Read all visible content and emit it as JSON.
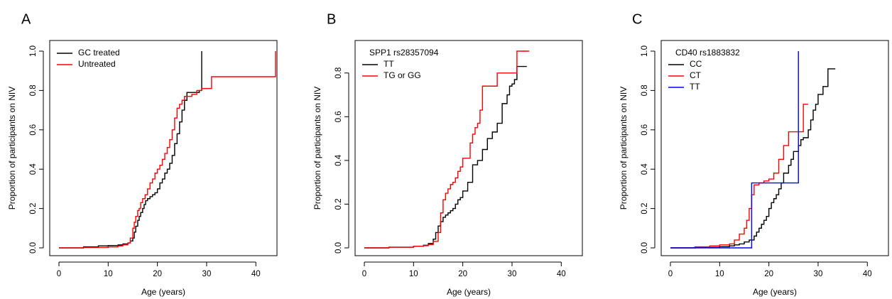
{
  "chart_data": [
    {
      "type": "line",
      "panel": "A",
      "xlabel": "Age (years)",
      "ylabel": "Proportion of participants on NIV",
      "xlim": [
        0,
        44
      ],
      "ylim": [
        0,
        1.0
      ],
      "xticks": [
        "0",
        "10",
        "20",
        "30",
        "40"
      ],
      "yticks": [
        "0.0",
        "0.2",
        "0.4",
        "0.6",
        "0.8",
        "1.0"
      ],
      "legend_position": "top-left",
      "legend_title": "",
      "series": [
        {
          "name": "GC treated",
          "color": "#000000",
          "x": [
            0,
            5,
            8,
            10,
            12,
            13,
            14,
            14.5,
            15,
            15.3,
            15.6,
            16,
            16.3,
            16.6,
            17,
            17.3,
            17.6,
            18,
            18.5,
            19,
            19.5,
            20,
            20.5,
            21,
            21.5,
            22,
            22.5,
            23,
            23.5,
            24,
            24.5,
            25,
            25.5,
            26,
            27,
            28,
            28.5,
            28.8,
            29
          ],
          "y": [
            0,
            0.005,
            0.01,
            0.012,
            0.015,
            0.02,
            0.025,
            0.035,
            0.05,
            0.08,
            0.11,
            0.14,
            0.16,
            0.18,
            0.2,
            0.22,
            0.24,
            0.25,
            0.26,
            0.27,
            0.28,
            0.3,
            0.33,
            0.35,
            0.38,
            0.4,
            0.43,
            0.47,
            0.53,
            0.58,
            0.64,
            0.7,
            0.75,
            0.79,
            0.79,
            0.79,
            0.8,
            0.8,
            1.0
          ]
        },
        {
          "name": "Untreated",
          "color": "#ff0000",
          "x": [
            0,
            5,
            10,
            12,
            13,
            14,
            14.5,
            15,
            15.3,
            15.6,
            16,
            16.3,
            16.6,
            17,
            17.5,
            18,
            18.5,
            19,
            19.5,
            20,
            20.5,
            21,
            21.5,
            22,
            22.5,
            23,
            23.5,
            24,
            24.5,
            25,
            25.5,
            26,
            27,
            28,
            29,
            30,
            31,
            33,
            35,
            38,
            40,
            42,
            44
          ],
          "y": [
            0,
            0.002,
            0.005,
            0.01,
            0.015,
            0.025,
            0.05,
            0.1,
            0.13,
            0.16,
            0.19,
            0.2,
            0.23,
            0.25,
            0.27,
            0.3,
            0.33,
            0.35,
            0.38,
            0.4,
            0.42,
            0.45,
            0.48,
            0.51,
            0.55,
            0.6,
            0.66,
            0.71,
            0.73,
            0.75,
            0.77,
            0.77,
            0.78,
            0.8,
            0.81,
            0.81,
            0.87,
            0.87,
            0.87,
            0.87,
            0.87,
            0.87,
            1.0
          ]
        }
      ]
    },
    {
      "type": "line",
      "panel": "B",
      "xlabel": "Age (years)",
      "ylabel": "Proportion of participants on NIV",
      "xlim": [
        0,
        44
      ],
      "ylim": [
        0,
        0.9
      ],
      "xticks": [
        "0",
        "10",
        "20",
        "30",
        "40"
      ],
      "yticks": [
        "0.0",
        "0.2",
        "0.4",
        "0.6",
        "0.8"
      ],
      "legend_position": "top-left",
      "legend_title": "SPP1 rs28357094",
      "series": [
        {
          "name": "TT",
          "color": "#000000",
          "x": [
            0,
            5,
            10,
            12,
            13,
            14,
            14.5,
            15,
            15.5,
            16,
            16.5,
            17,
            17.5,
            18,
            18.5,
            19,
            19.5,
            20,
            21,
            22,
            23,
            24,
            25,
            26,
            27,
            28,
            29,
            29.5,
            30,
            30.5,
            31,
            31.5,
            33
          ],
          "y": [
            0,
            0.003,
            0.007,
            0.012,
            0.02,
            0.04,
            0.07,
            0.1,
            0.12,
            0.14,
            0.15,
            0.16,
            0.17,
            0.18,
            0.2,
            0.22,
            0.23,
            0.26,
            0.3,
            0.38,
            0.4,
            0.45,
            0.5,
            0.53,
            0.57,
            0.66,
            0.7,
            0.74,
            0.75,
            0.77,
            0.83,
            0.83,
            0.83
          ]
        },
        {
          "name": "TG or GG",
          "color": "#ff0000",
          "x": [
            0,
            5,
            10,
            12,
            13,
            14,
            15,
            15.5,
            16,
            16.5,
            17,
            17.5,
            18,
            18.5,
            19,
            19.5,
            20,
            21,
            21.5,
            22,
            22.5,
            23,
            23.5,
            24,
            25,
            26,
            27,
            28,
            29,
            30,
            31,
            32,
            33.5
          ],
          "y": [
            0,
            0.003,
            0.007,
            0.01,
            0.015,
            0.03,
            0.07,
            0.16,
            0.22,
            0.25,
            0.27,
            0.29,
            0.3,
            0.32,
            0.35,
            0.37,
            0.41,
            0.41,
            0.48,
            0.52,
            0.55,
            0.57,
            0.63,
            0.74,
            0.74,
            0.74,
            0.8,
            0.8,
            0.8,
            0.8,
            0.9,
            0.9,
            0.9
          ]
        }
      ]
    },
    {
      "type": "line",
      "panel": "C",
      "xlabel": "Age (years)",
      "ylabel": "Proportion of participants on NIV",
      "xlim": [
        0,
        44
      ],
      "ylim": [
        0,
        1.0
      ],
      "xticks": [
        "0",
        "10",
        "20",
        "30",
        "40"
      ],
      "yticks": [
        "0.0",
        "0.2",
        "0.4",
        "0.6",
        "0.8",
        "1.0"
      ],
      "legend_position": "top-left",
      "legend_title": "CD40 rs1883832",
      "series": [
        {
          "name": "CC",
          "color": "#000000",
          "x": [
            0,
            5,
            10,
            12,
            13,
            14,
            15,
            16,
            17,
            17.5,
            18,
            18.5,
            19,
            19.5,
            20,
            20.5,
            21,
            21.5,
            22,
            22.5,
            23,
            24,
            24.5,
            25,
            26,
            26.5,
            27,
            28,
            28.5,
            29,
            29.5,
            30,
            31,
            32,
            33.5
          ],
          "y": [
            0,
            0.003,
            0.006,
            0.01,
            0.015,
            0.02,
            0.03,
            0.04,
            0.06,
            0.08,
            0.1,
            0.12,
            0.14,
            0.16,
            0.2,
            0.23,
            0.25,
            0.27,
            0.3,
            0.33,
            0.38,
            0.42,
            0.45,
            0.49,
            0.52,
            0.55,
            0.56,
            0.6,
            0.65,
            0.7,
            0.73,
            0.78,
            0.82,
            0.91,
            0.91
          ]
        },
        {
          "name": "CT",
          "color": "#ff0000",
          "x": [
            0,
            5,
            8,
            10,
            12,
            13,
            14,
            15,
            15.5,
            16,
            16.5,
            17,
            18,
            19,
            20,
            21,
            22,
            23,
            24,
            25,
            26,
            27,
            28
          ],
          "y": [
            0,
            0.005,
            0.01,
            0.015,
            0.02,
            0.04,
            0.07,
            0.1,
            0.14,
            0.2,
            0.27,
            0.32,
            0.33,
            0.34,
            0.35,
            0.38,
            0.45,
            0.52,
            0.59,
            0.59,
            0.59,
            0.73,
            0.73
          ]
        },
        {
          "name": "TT",
          "color": "#0000ff",
          "x": [
            0,
            16.5,
            26,
            26
          ],
          "y": [
            0,
            0.33,
            0.33,
            1.0
          ]
        }
      ]
    }
  ]
}
